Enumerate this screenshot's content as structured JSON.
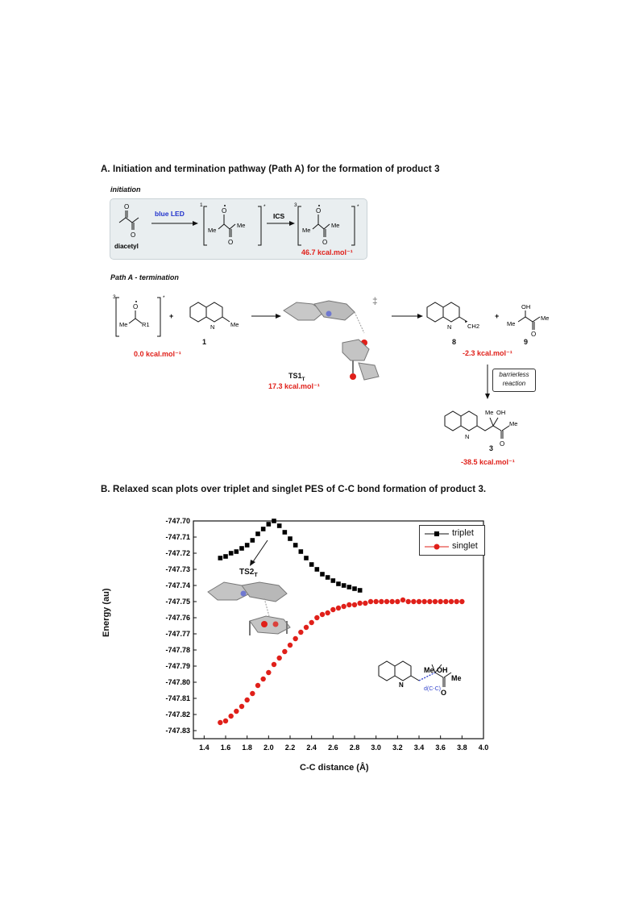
{
  "section_a": {
    "title": "A. Initiation and termination pathway (Path A) for the formation of product 3",
    "initiation_label": "initiation",
    "blue_led": "blue LED",
    "ics": "ICS",
    "diacetyl": "diacetyl",
    "triplet_energy": "46.7 kcal.mol⁻¹",
    "path_label": "Path A - termination",
    "start_energy": "0.0 kcal.mol⁻¹",
    "compound_1": "1",
    "ts_label": "TS1",
    "ts_sub": "T",
    "ts_energy": "17.3 kcal.mol⁻¹",
    "compound_8": "8",
    "compound_9": "9",
    "energy_8_9": "-2.3 kcal.mol⁻¹",
    "barrierless_1": "barrierless",
    "barrierless_2": "reaction",
    "compound_3": "3",
    "energy_3": "-38.5 kcal.mol⁻¹",
    "dagger": "‡",
    "sup_1": "1",
    "sup_3": "3",
    "star": "*",
    "me": "Me",
    "oh": "OH",
    "o": "O",
    "n": "N",
    "r1": "R1",
    "ch2": "CH2"
  },
  "section_b": {
    "title": "B. Relaxed scan plots over triplet and singlet PES of C-C bond formation of product 3.",
    "ts2_label": "TS2",
    "ts2_sub": "T",
    "d_label": "d(C-C)"
  },
  "chart_data": {
    "type": "scatter",
    "xlabel": "C-C distance (Å)",
    "ylabel": "Energy (au)",
    "xlim": [
      1.3,
      4.0
    ],
    "ylim": [
      -747.835,
      -747.7
    ],
    "xticks": [
      1.4,
      1.6,
      1.8,
      2.0,
      2.2,
      2.4,
      2.6,
      2.8,
      3.0,
      3.2,
      3.4,
      3.6,
      3.8,
      4.0
    ],
    "yticks": [
      -747.7,
      -747.71,
      -747.72,
      -747.73,
      -747.74,
      -747.75,
      -747.76,
      -747.77,
      -747.78,
      -747.79,
      -747.8,
      -747.81,
      -747.82,
      -747.83
    ],
    "legend_position": "top-right",
    "series": [
      {
        "name": "triplet",
        "color": "#000000",
        "marker": "square",
        "x": [
          1.55,
          1.6,
          1.65,
          1.7,
          1.75,
          1.8,
          1.85,
          1.9,
          1.95,
          2.0,
          2.05,
          2.1,
          2.15,
          2.2,
          2.25,
          2.3,
          2.35,
          2.4,
          2.45,
          2.5,
          2.55,
          2.6,
          2.65,
          2.7,
          2.75,
          2.8,
          2.85
        ],
        "y": [
          -747.723,
          -747.722,
          -747.72,
          -747.719,
          -747.717,
          -747.715,
          -747.712,
          -747.708,
          -747.705,
          -747.702,
          -747.7,
          -747.703,
          -747.707,
          -747.711,
          -747.715,
          -747.719,
          -747.723,
          -747.727,
          -747.73,
          -747.733,
          -747.735,
          -747.737,
          -747.739,
          -747.74,
          -747.741,
          -747.742,
          -747.743
        ]
      },
      {
        "name": "singlet",
        "color": "#e0201a",
        "marker": "circle",
        "x": [
          1.55,
          1.6,
          1.65,
          1.7,
          1.75,
          1.8,
          1.85,
          1.9,
          1.95,
          2.0,
          2.05,
          2.1,
          2.15,
          2.2,
          2.25,
          2.3,
          2.35,
          2.4,
          2.45,
          2.5,
          2.55,
          2.6,
          2.65,
          2.7,
          2.75,
          2.8,
          2.85,
          2.9,
          2.95,
          3.0,
          3.05,
          3.1,
          3.15,
          3.2,
          3.25,
          3.3,
          3.35,
          3.4,
          3.45,
          3.5,
          3.55,
          3.6,
          3.65,
          3.7,
          3.75,
          3.8
        ],
        "y": [
          -747.825,
          -747.824,
          -747.821,
          -747.818,
          -747.815,
          -747.811,
          -747.807,
          -747.802,
          -747.798,
          -747.794,
          -747.789,
          -747.785,
          -747.781,
          -747.777,
          -747.773,
          -747.769,
          -747.766,
          -747.763,
          -747.76,
          -747.758,
          -747.757,
          -747.755,
          -747.754,
          -747.753,
          -747.752,
          -747.752,
          -747.751,
          -747.751,
          -747.75,
          -747.75,
          -747.75,
          -747.75,
          -747.75,
          -747.75,
          -747.749,
          -747.75,
          -747.75,
          -747.75,
          -747.75,
          -747.75,
          -747.75,
          -747.75,
          -747.75,
          -747.75,
          -747.75,
          -747.75
        ]
      }
    ]
  }
}
